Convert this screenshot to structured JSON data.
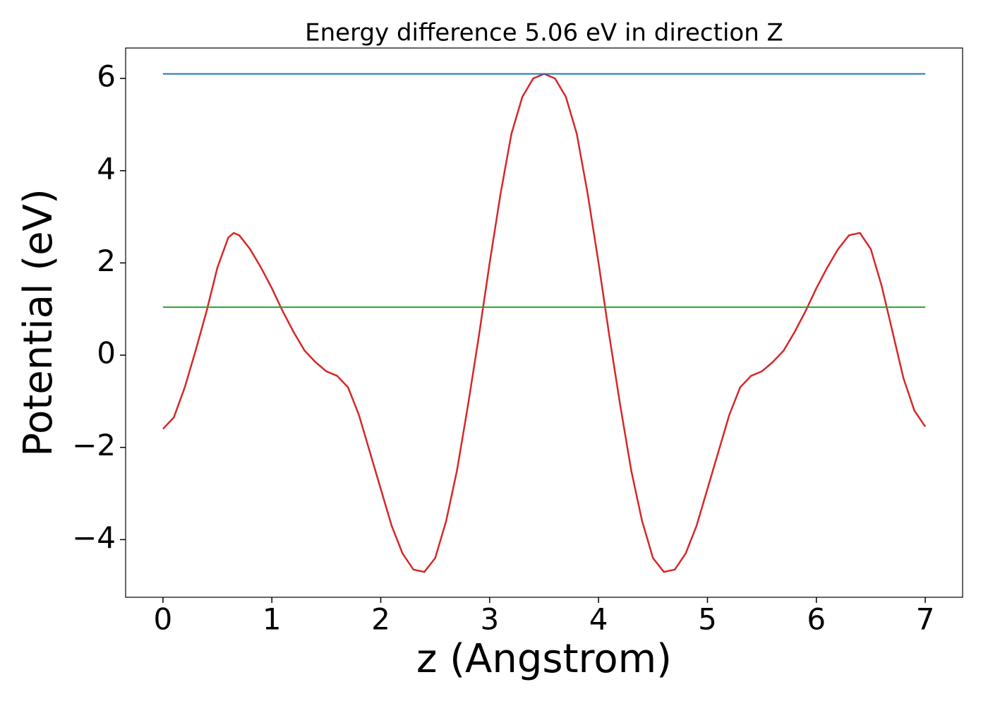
{
  "chart_data": {
    "type": "line",
    "title": "Energy difference 5.06 eV in direction Z",
    "x_label": "z (Angstrom)",
    "y_label": "Potential (eV)",
    "xlim": [
      -0.343,
      7.343
    ],
    "ylim": [
      -5.25,
      6.66
    ],
    "xticks": [
      0,
      1,
      2,
      3,
      4,
      5,
      6,
      7
    ],
    "yticks": [
      {
        "value": -4,
        "label": "−4"
      },
      {
        "value": -2,
        "label": "−2"
      },
      0,
      2,
      4,
      6
    ],
    "series": [
      {
        "color": "#d62728",
        "x": [
          0,
          0.1,
          0.2,
          0.3,
          0.4,
          0.5,
          0.6,
          0.65,
          0.7,
          0.8,
          0.9,
          1.0,
          1.1,
          1.2,
          1.3,
          1.4,
          1.5,
          1.6,
          1.7,
          1.8,
          1.9,
          2.0,
          2.1,
          2.2,
          2.3,
          2.4,
          2.5,
          2.6,
          2.7,
          2.8,
          2.9,
          3.0,
          3.1,
          3.2,
          3.3,
          3.4,
          3.5,
          3.6,
          3.7,
          3.8,
          3.9,
          4.0,
          4.1,
          4.2,
          4.3,
          4.4,
          4.5,
          4.6,
          4.7,
          4.8,
          4.9,
          5.0,
          5.1,
          5.2,
          5.3,
          5.4,
          5.5,
          5.6,
          5.7,
          5.8,
          5.9,
          6.0,
          6.1,
          6.2,
          6.3,
          6.4,
          6.5,
          6.6,
          6.7,
          6.8,
          6.9,
          7.0
        ],
        "values": [
          -1.6,
          -1.35,
          -0.7,
          0.1,
          0.95,
          1.9,
          2.55,
          2.65,
          2.6,
          2.3,
          1.9,
          1.45,
          0.95,
          0.5,
          0.1,
          -0.15,
          -0.35,
          -0.45,
          -0.7,
          -1.3,
          -2.1,
          -2.9,
          -3.7,
          -4.3,
          -4.65,
          -4.7,
          -4.4,
          -3.6,
          -2.5,
          -1.1,
          0.4,
          2.0,
          3.5,
          4.8,
          5.6,
          6.0,
          6.1,
          6.0,
          5.6,
          4.8,
          3.5,
          2.0,
          0.4,
          -1.1,
          -2.5,
          -3.6,
          -4.4,
          -4.7,
          -4.65,
          -4.3,
          -3.7,
          -2.9,
          -2.1,
          -1.3,
          -0.7,
          -0.45,
          -0.35,
          -0.15,
          0.1,
          0.5,
          0.95,
          1.45,
          1.9,
          2.3,
          2.6,
          2.65,
          2.3,
          1.5,
          0.5,
          -0.5,
          -1.2,
          -1.55
        ]
      },
      {
        "color": "#1f77b4",
        "x": [
          0,
          7
        ],
        "values": [
          6.1,
          6.1
        ]
      },
      {
        "color": "#2ca02c",
        "x": [
          0,
          7
        ],
        "values": [
          1.04,
          1.04
        ]
      }
    ]
  }
}
